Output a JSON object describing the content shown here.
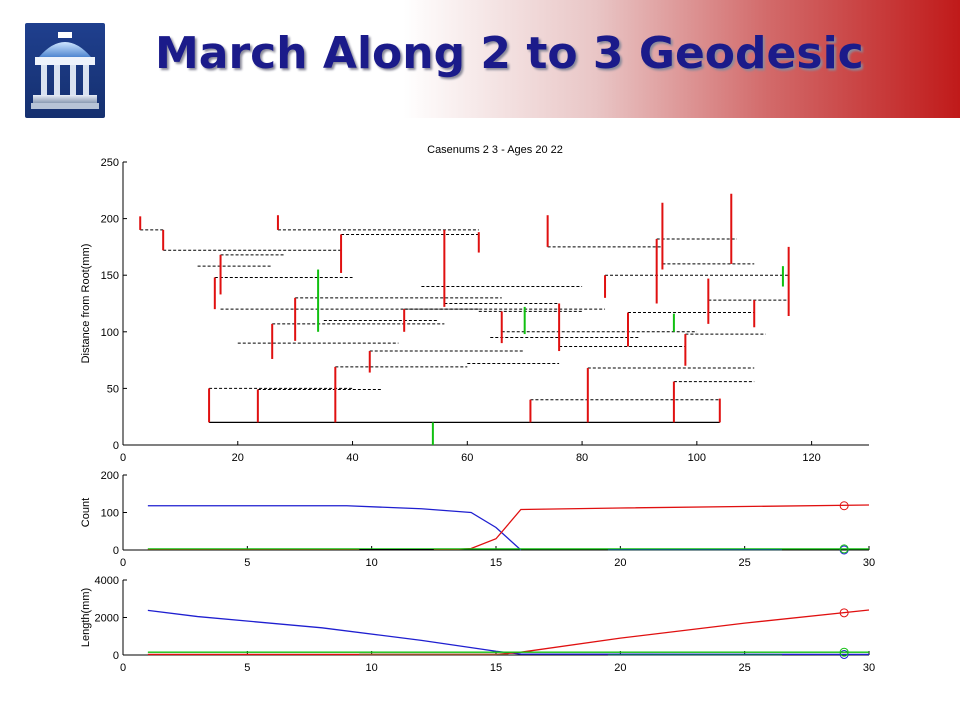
{
  "slide": {
    "title": "March Along 2 to 3 Geodesic"
  },
  "icons": {
    "logo": "old-well-icon"
  },
  "colors": {
    "blue": "#1f1fd0",
    "red": "#e01010",
    "green": "#10c010",
    "black": "#000000",
    "brown": "#8b5a2b",
    "teal": "#0a6070",
    "title": "#1b1b8a",
    "header_gradient_end": "#c01a1a"
  },
  "chart_data": [
    {
      "type": "tree-stick-plot",
      "title": "Casenums 2 3 - Ages 20 22",
      "xlabel": "",
      "ylabel": "Distance from Root(mm)",
      "xlim": [
        0,
        130
      ],
      "ylim": [
        0,
        250
      ],
      "xticks": [
        0,
        20,
        40,
        60,
        80,
        100,
        120
      ],
      "yticks": [
        0,
        50,
        100,
        150,
        200,
        250
      ],
      "trunk": {
        "x": [
          15,
          104
        ],
        "y": 20
      },
      "branches": [
        {
          "x": 15,
          "y0": 20,
          "y1": 50
        },
        {
          "x": 23.5,
          "y0": 20,
          "y1": 49
        },
        {
          "x": 37,
          "y0": 20,
          "y1": 69
        },
        {
          "x": 54,
          "y0": 20,
          "y1": 0,
          "color": "green"
        },
        {
          "x": 71,
          "y0": 20,
          "y1": 40
        },
        {
          "x": 81,
          "y0": 20,
          "y1": 68
        },
        {
          "x": 96,
          "y0": 20,
          "y1": 56
        },
        {
          "x": 104,
          "y0": 20,
          "y1": 41
        },
        {
          "x": 16,
          "y0": 120,
          "y1": 148
        },
        {
          "x": 17,
          "y0": 133,
          "y1": 168
        },
        {
          "x": 26,
          "y0": 76,
          "y1": 107
        },
        {
          "x": 30,
          "y0": 92,
          "y1": 130
        },
        {
          "x": 34,
          "y0": 100,
          "y1": 155,
          "color": "green"
        },
        {
          "x": 38,
          "y0": 152,
          "y1": 186
        },
        {
          "x": 43,
          "y0": 64,
          "y1": 83
        },
        {
          "x": 49,
          "y0": 100,
          "y1": 120
        },
        {
          "x": 56,
          "y0": 122,
          "y1": 190
        },
        {
          "x": 62,
          "y0": 170,
          "y1": 188
        },
        {
          "x": 66,
          "y0": 90,
          "y1": 118
        },
        {
          "x": 70,
          "y0": 98,
          "y1": 122,
          "color": "green"
        },
        {
          "x": 74,
          "y0": 175,
          "y1": 203
        },
        {
          "x": 76,
          "y0": 83,
          "y1": 125
        },
        {
          "x": 84,
          "y0": 130,
          "y1": 150
        },
        {
          "x": 88,
          "y0": 87,
          "y1": 117
        },
        {
          "x": 93,
          "y0": 125,
          "y1": 182
        },
        {
          "x": 94,
          "y0": 155,
          "y1": 214
        },
        {
          "x": 96,
          "y0": 100,
          "y1": 116,
          "color": "green"
        },
        {
          "x": 98,
          "y0": 70,
          "y1": 98
        },
        {
          "x": 102,
          "y0": 107,
          "y1": 147
        },
        {
          "x": 106,
          "y0": 160,
          "y1": 222
        },
        {
          "x": 110,
          "y0": 104,
          "y1": 128
        },
        {
          "x": 115,
          "y0": 140,
          "y1": 158,
          "color": "green"
        },
        {
          "x": 116,
          "y0": 114,
          "y1": 175
        },
        {
          "x": 3,
          "y0": 190,
          "y1": 202
        },
        {
          "x": 7,
          "y0": 172,
          "y1": 190
        },
        {
          "x": 27,
          "y0": 190,
          "y1": 203
        }
      ],
      "connectors": [
        {
          "x0": 15,
          "x1": 40,
          "y": 50
        },
        {
          "x0": 23.5,
          "x1": 45,
          "y": 49
        },
        {
          "x0": 37,
          "x1": 60,
          "y": 69
        },
        {
          "x0": 71,
          "x1": 104,
          "y": 40
        },
        {
          "x0": 81,
          "x1": 110,
          "y": 68
        },
        {
          "x0": 96,
          "x1": 110,
          "y": 56
        },
        {
          "x0": 17,
          "x1": 62,
          "y": 120
        },
        {
          "x0": 16,
          "x1": 40,
          "y": 148
        },
        {
          "x0": 17,
          "x1": 28,
          "y": 168
        },
        {
          "x0": 26,
          "x1": 56,
          "y": 107
        },
        {
          "x0": 30,
          "x1": 66,
          "y": 130
        },
        {
          "x0": 38,
          "x1": 62,
          "y": 186
        },
        {
          "x0": 3,
          "x1": 7,
          "y": 190
        },
        {
          "x0": 7,
          "x1": 38,
          "y": 172
        },
        {
          "x0": 27,
          "x1": 62,
          "y": 190
        },
        {
          "x0": 43,
          "x1": 70,
          "y": 83
        },
        {
          "x0": 49,
          "x1": 84,
          "y": 120
        },
        {
          "x0": 56,
          "x1": 76,
          "y": 125
        },
        {
          "x0": 62,
          "x1": 80,
          "y": 118
        },
        {
          "x0": 66,
          "x1": 100,
          "y": 100
        },
        {
          "x0": 74,
          "x1": 94,
          "y": 175
        },
        {
          "x0": 76,
          "x1": 98,
          "y": 87
        },
        {
          "x0": 84,
          "x1": 116,
          "y": 150
        },
        {
          "x0": 88,
          "x1": 110,
          "y": 117
        },
        {
          "x0": 93,
          "x1": 107,
          "y": 182
        },
        {
          "x0": 94,
          "x1": 110,
          "y": 160
        },
        {
          "x0": 98,
          "x1": 112,
          "y": 98
        },
        {
          "x0": 102,
          "x1": 116,
          "y": 128
        },
        {
          "x0": 20,
          "x1": 48,
          "y": 90
        },
        {
          "x0": 52,
          "x1": 80,
          "y": 140
        },
        {
          "x0": 60,
          "x1": 76,
          "y": 72
        },
        {
          "x0": 64,
          "x1": 90,
          "y": 95
        },
        {
          "x0": 13,
          "x1": 26,
          "y": 158
        },
        {
          "x0": 35,
          "x1": 55,
          "y": 110
        }
      ]
    },
    {
      "type": "line",
      "title": "",
      "ylabel": "Count",
      "xlim": [
        0,
        30
      ],
      "ylim": [
        0,
        200
      ],
      "xticks": [
        0,
        5,
        10,
        15,
        20,
        25,
        30
      ],
      "yticks": [
        0,
        100,
        200
      ],
      "series": [
        {
          "color": "blue",
          "x": [
            1,
            9,
            12,
            14,
            15,
            16
          ],
          "values": [
            118,
            118,
            110,
            100,
            60,
            0
          ],
          "marker_at": 29,
          "marker_value": 0
        },
        {
          "color": "red",
          "x": [
            1,
            13.5,
            14,
            15,
            16,
            20,
            30
          ],
          "values": [
            2,
            2,
            4,
            30,
            108,
            112,
            120
          ],
          "marker_at": 29,
          "marker_value": 118
        },
        {
          "color": "green",
          "x": [
            1,
            30
          ],
          "values": [
            3,
            3
          ],
          "marker_at": 29,
          "marker_value": 3
        },
        {
          "color": "black",
          "x": [
            9.5,
            12.5
          ],
          "values": [
            1,
            1
          ]
        },
        {
          "color": "teal",
          "x": [
            19.5,
            26.5
          ],
          "values": [
            1,
            1
          ]
        }
      ]
    },
    {
      "type": "line",
      "title": "",
      "ylabel": "Length(mm)",
      "xlim": [
        0,
        30
      ],
      "ylim": [
        0,
        4000
      ],
      "xticks": [
        0,
        5,
        10,
        15,
        20,
        25,
        30
      ],
      "yticks": [
        0,
        2000,
        4000
      ],
      "series": [
        {
          "color": "blue",
          "x": [
            1,
            3,
            8,
            12,
            15,
            16,
            30
          ],
          "values": [
            2380,
            2050,
            1450,
            780,
            200,
            50,
            30
          ],
          "marker_at": 29,
          "marker_value": 30
        },
        {
          "color": "red",
          "x": [
            1,
            15,
            16,
            20,
            25,
            30
          ],
          "values": [
            30,
            30,
            150,
            900,
            1700,
            2400
          ],
          "marker_at": 29,
          "marker_value": 2250
        },
        {
          "color": "green",
          "x": [
            1,
            30
          ],
          "values": [
            150,
            150
          ],
          "marker_at": 29,
          "marker_value": 150
        },
        {
          "color": "brown",
          "x": [
            9.5,
            15.5
          ],
          "values": [
            40,
            40
          ]
        },
        {
          "color": "teal",
          "x": [
            19.5,
            26.5
          ],
          "values": [
            20,
            20
          ]
        }
      ]
    }
  ]
}
